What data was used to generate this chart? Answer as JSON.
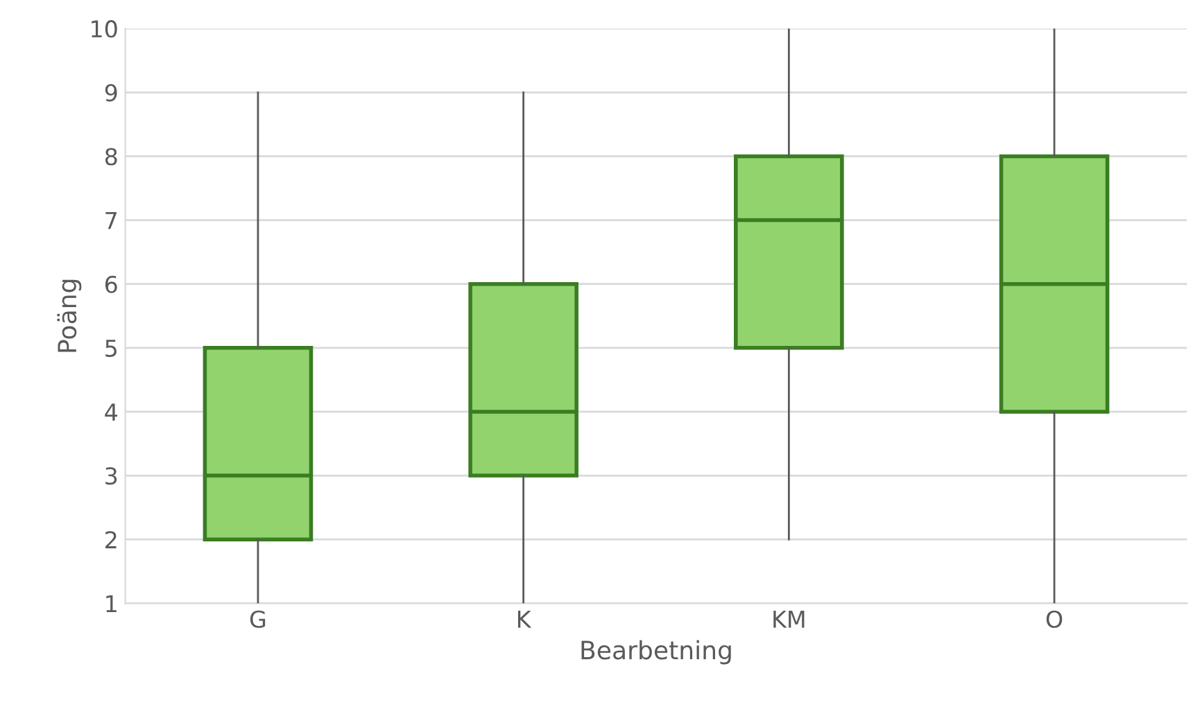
{
  "chart_data": {
    "type": "box",
    "xlabel": "Bearbetning",
    "ylabel": "Poäng",
    "categories": [
      "G",
      "K",
      "KM",
      "O"
    ],
    "series": [
      {
        "color": "#92d36e",
        "boxes": [
          {
            "low": 1,
            "q1": 2,
            "median": 3,
            "q3": 5,
            "high": 9
          },
          {
            "low": 1,
            "q1": 3,
            "median": 4,
            "q3": 6,
            "high": 9
          },
          {
            "low": 2,
            "q1": 5,
            "median": 7,
            "q3": 8,
            "high": 10
          },
          {
            "low": 1,
            "q1": 4,
            "median": 6,
            "q3": 8,
            "high": 10
          }
        ]
      }
    ],
    "ylim": [
      1,
      10
    ],
    "yticks": [
      1,
      2,
      3,
      4,
      5,
      6,
      7,
      8,
      9,
      10
    ],
    "grid": "y",
    "legend": false
  }
}
